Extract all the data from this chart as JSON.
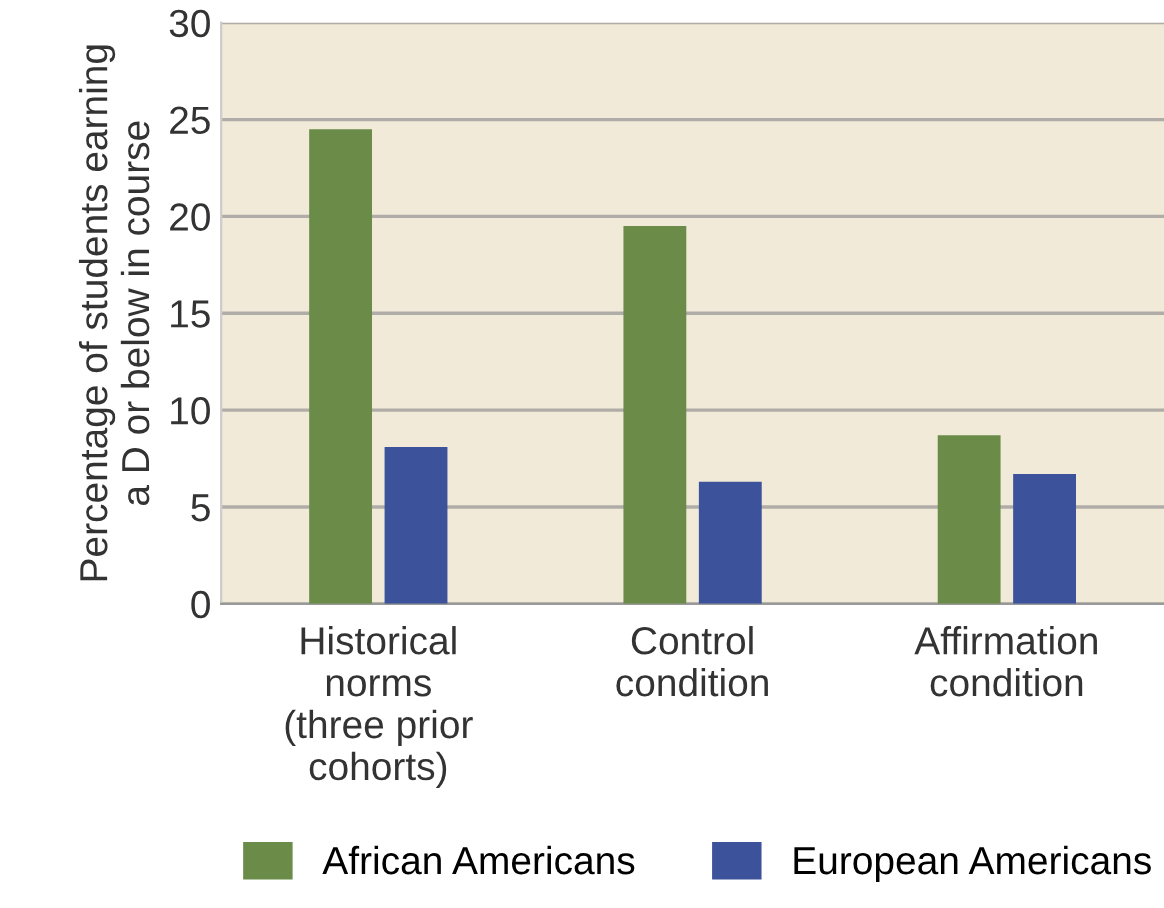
{
  "chart_data": {
    "type": "bar",
    "ylabel": "Percentage of students earning\na D or below in course",
    "categories": [
      "Historical\nnorms\n(three prior\ncohorts)",
      "Control\ncondition",
      "Affirmation\ncondition"
    ],
    "series": [
      {
        "name": "African Americans",
        "color": "#6a8c48",
        "values": [
          24.5,
          19.5,
          8.7
        ]
      },
      {
        "name": "European Americans",
        "color": "#3c539b",
        "values": [
          8.1,
          6.3,
          6.7
        ]
      }
    ],
    "ylim": [
      0,
      30
    ],
    "yticks": [
      0,
      5,
      10,
      15,
      20,
      25,
      30
    ],
    "grid": "y",
    "legend": "bottom"
  }
}
